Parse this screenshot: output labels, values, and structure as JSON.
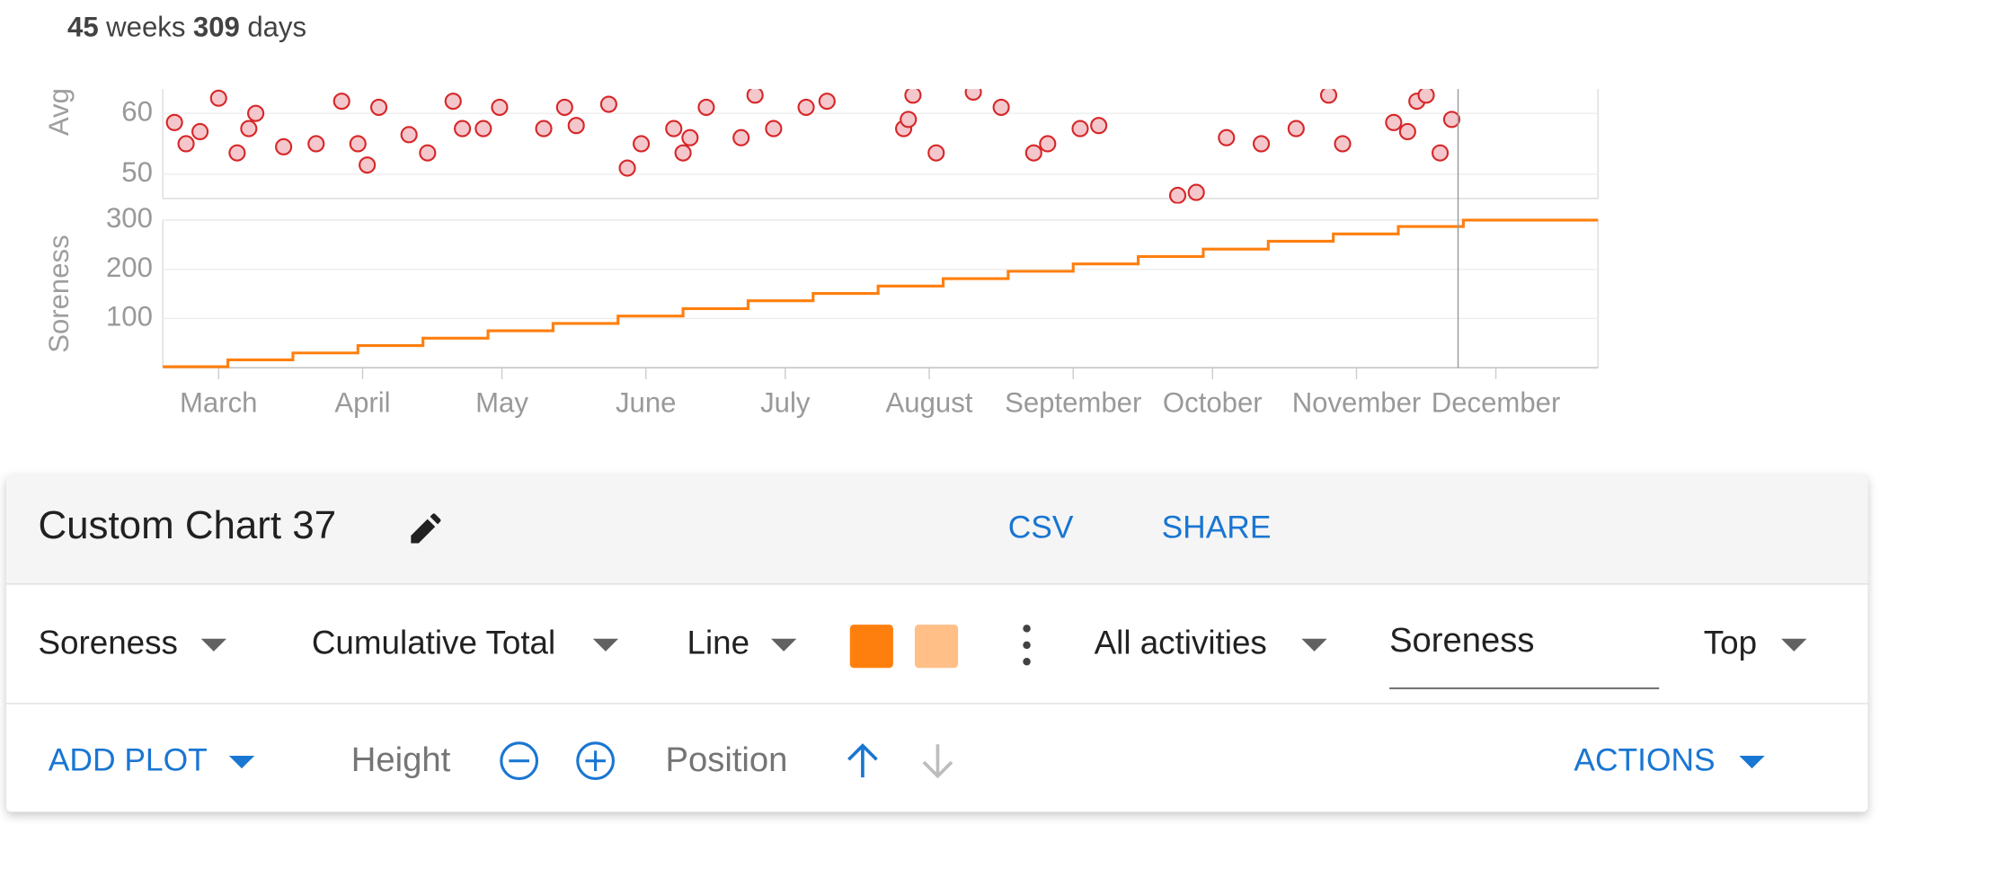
{
  "summary": {
    "weeks": 45,
    "weeks_unit": "weeks",
    "days": 309,
    "days_unit": "days"
  },
  "chart_data": [
    {
      "type": "scatter",
      "y_label": "Avg",
      "color": "#d62728",
      "fill": "#f4c7cc",
      "grid": true,
      "xlim": [
        0,
        309
      ],
      "ylim": [
        46,
        64
      ],
      "yticks": [
        50,
        60
      ],
      "x": [
        2.5,
        5,
        8,
        12,
        16,
        18.5,
        20,
        26,
        33,
        38.5,
        42,
        44,
        46.5,
        53,
        57,
        62.5,
        64.5,
        69,
        72.5,
        82,
        86.5,
        89,
        96,
        100,
        103,
        110,
        112,
        113.5,
        117,
        124.5,
        127.5,
        131.5,
        138.5,
        143,
        159.5,
        160.5,
        161.5,
        166.5,
        174.5,
        180.5,
        187.5,
        190.5,
        197.5,
        201.5,
        218.5,
        222.5,
        229,
        236.5,
        244,
        251,
        254,
        265,
        268,
        270,
        272,
        275,
        277.5
      ],
      "values": [
        58.5,
        55,
        57,
        62.5,
        53.5,
        57.5,
        60,
        54.5,
        55,
        62,
        55,
        51.5,
        61,
        56.5,
        53.5,
        62,
        57.5,
        57.5,
        61,
        57.5,
        61,
        58,
        61.5,
        51,
        55,
        57.5,
        53.5,
        56,
        61,
        56,
        63,
        57.5,
        61,
        62,
        57.5,
        59,
        63,
        53.5,
        63.5,
        61,
        53.5,
        55,
        57.5,
        58,
        46.5,
        47,
        56,
        55,
        57.5,
        63,
        55,
        58.5,
        57,
        62,
        63,
        53.5,
        59
      ]
    },
    {
      "type": "line",
      "y_label": "Soreness",
      "color": "#ff7f0e",
      "step": true,
      "grid": true,
      "xlim": [
        0,
        309
      ],
      "ylim": [
        0,
        300
      ],
      "yticks": [
        100,
        200,
        300
      ],
      "xticks": [
        {
          "value": 12,
          "label": "March"
        },
        {
          "value": 43,
          "label": "April"
        },
        {
          "value": 73,
          "label": "May"
        },
        {
          "value": 104,
          "label": "June"
        },
        {
          "value": 134,
          "label": "July"
        },
        {
          "value": 165,
          "label": "August"
        },
        {
          "value": 196,
          "label": "September"
        },
        {
          "value": 226,
          "label": "October"
        },
        {
          "value": 257,
          "label": "November"
        },
        {
          "value": 287,
          "label": "December"
        }
      ],
      "x": [
        0,
        14,
        28,
        42,
        56,
        70,
        84,
        98,
        112,
        126,
        140,
        154,
        168,
        182,
        196,
        210,
        224,
        238,
        252,
        266,
        280,
        309
      ],
      "values": [
        2,
        16,
        30,
        45,
        60,
        75,
        90,
        105,
        120,
        136,
        151,
        166,
        181,
        196,
        211,
        226,
        241,
        257,
        272,
        287,
        300,
        300
      ]
    }
  ],
  "panel": {
    "title": "Custom Chart 37",
    "actions": [
      "CSV",
      "SHARE"
    ],
    "controls": {
      "metric": "Soreness",
      "aggregation": "Cumulative Total",
      "style": "Line",
      "colors": [
        "#ff7f0e",
        "#ffbf86"
      ],
      "filter": "All activities",
      "label": "Soreness",
      "placement": "Top"
    },
    "toolbar": {
      "add": "ADD PLOT",
      "height": "Height",
      "position": "Position",
      "actions": "ACTIONS"
    }
  }
}
